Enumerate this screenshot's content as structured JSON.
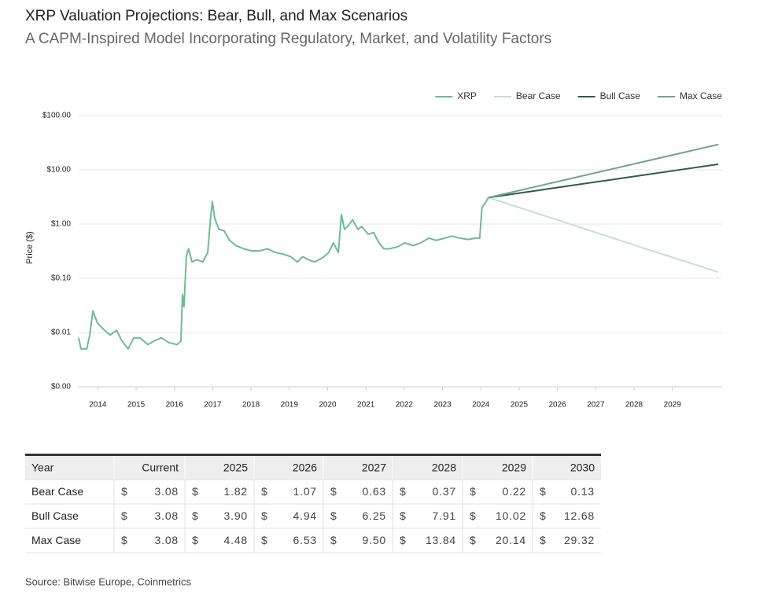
{
  "title": "XRP Valuation Projections: Bear, Bull, and Max Scenarios",
  "subtitle": "A CAPM-Inspired Model Incorporating Regulatory, Market, and Volatility Factors",
  "chart_data": {
    "type": "line",
    "y_label": "Price ($)",
    "log_scale": true,
    "grid": true,
    "legend": "top-right",
    "xlim": [
      2013.5,
      2030.3
    ],
    "ylim": [
      0.001,
      100
    ],
    "xticks": [
      2014,
      2015,
      2016,
      2017,
      2018,
      2019,
      2020,
      2021,
      2022,
      2023,
      2024,
      2025,
      2026,
      2027,
      2028,
      2029
    ],
    "yticks": [
      {
        "value": 0.001,
        "label": "$0.00"
      },
      {
        "value": 0.01,
        "label": "$0.01"
      },
      {
        "value": 0.1,
        "label": "$0.10"
      },
      {
        "value": 1,
        "label": "$1.00"
      },
      {
        "value": 10,
        "label": "$10.00"
      },
      {
        "value": 100,
        "label": "$100.00"
      }
    ],
    "series": [
      {
        "name": "XRP",
        "color": "#6dbb94",
        "x": [
          2013.5,
          2013.56,
          2013.71,
          2013.79,
          2013.87,
          2013.99,
          2014.12,
          2014.32,
          2014.49,
          2014.63,
          2014.79,
          2014.94,
          2015.1,
          2015.31,
          2015.47,
          2015.66,
          2015.86,
          2016.07,
          2016.17,
          2016.21,
          2016.25,
          2016.31,
          2016.37,
          2016.46,
          2016.58,
          2016.74,
          2016.87,
          2016.93,
          2016.99,
          2017.05,
          2017.16,
          2017.3,
          2017.44,
          2017.61,
          2017.81,
          2018.02,
          2018.22,
          2018.43,
          2018.63,
          2018.84,
          2019.04,
          2019.21,
          2019.35,
          2019.5,
          2019.66,
          2019.87,
          2020.03,
          2020.15,
          2020.28,
          2020.36,
          2020.44,
          2020.52,
          2020.65,
          2020.79,
          2020.89,
          2021.06,
          2021.2,
          2021.34,
          2021.47,
          2021.61,
          2021.82,
          2022.02,
          2022.23,
          2022.43,
          2022.64,
          2022.84,
          2023.05,
          2023.25,
          2023.46,
          2023.66,
          2023.87,
          2023.97,
          2024.03,
          2024.12,
          2024.2
        ],
        "values": [
          0.008,
          0.005,
          0.005,
          0.009,
          0.025,
          0.015,
          0.012,
          0.009,
          0.011,
          0.007,
          0.005,
          0.008,
          0.008,
          0.006,
          0.007,
          0.008,
          0.0065,
          0.006,
          0.007,
          0.05,
          0.03,
          0.25,
          0.35,
          0.2,
          0.22,
          0.2,
          0.3,
          1.0,
          2.6,
          1.3,
          0.8,
          0.75,
          0.5,
          0.4,
          0.35,
          0.32,
          0.32,
          0.35,
          0.3,
          0.28,
          0.25,
          0.2,
          0.25,
          0.22,
          0.2,
          0.24,
          0.3,
          0.45,
          0.3,
          1.5,
          0.8,
          0.9,
          1.2,
          0.8,
          0.9,
          0.65,
          0.7,
          0.45,
          0.35,
          0.35,
          0.38,
          0.45,
          0.4,
          0.45,
          0.55,
          0.5,
          0.55,
          0.6,
          0.55,
          0.52,
          0.55,
          0.55,
          2.0,
          2.5,
          3.08
        ]
      },
      {
        "name": "Bear Case",
        "color": "#c6e0d2",
        "x": [
          2024.2,
          2025.2,
          2026.2,
          2027.2,
          2028.2,
          2029.2,
          2030.2
        ],
        "values": [
          3.08,
          1.82,
          1.07,
          0.63,
          0.37,
          0.22,
          0.13
        ]
      },
      {
        "name": "Bull Case",
        "color": "#2f5c48",
        "x": [
          2024.2,
          2025.2,
          2026.2,
          2027.2,
          2028.2,
          2029.2,
          2030.2
        ],
        "values": [
          3.08,
          3.9,
          4.94,
          6.25,
          7.91,
          10.02,
          12.68
        ]
      },
      {
        "name": "Max Case",
        "color": "#72a38b",
        "x": [
          2024.2,
          2025.2,
          2026.2,
          2027.2,
          2028.2,
          2029.2,
          2030.2
        ],
        "values": [
          3.08,
          4.48,
          6.53,
          9.5,
          13.84,
          20.14,
          29.32
        ]
      }
    ]
  },
  "table": {
    "columns": [
      "Year",
      "Current",
      "2025",
      "2026",
      "2027",
      "2028",
      "2029",
      "2030"
    ],
    "currency": "$",
    "rows": [
      {
        "label": "Bear Case",
        "cells": [
          "3.08",
          "1.82",
          "1.07",
          "0.63",
          "0.37",
          "0.22",
          "0.13"
        ]
      },
      {
        "label": "Bull Case",
        "cells": [
          "3.08",
          "3.90",
          "4.94",
          "6.25",
          "7.91",
          "10.02",
          "12.68"
        ]
      },
      {
        "label": "Max Case",
        "cells": [
          "3.08",
          "4.48",
          "6.53",
          "9.50",
          "13.84",
          "20.14",
          "29.32"
        ]
      }
    ]
  },
  "source": "Source: Bitwise Europe, Coinmetrics"
}
